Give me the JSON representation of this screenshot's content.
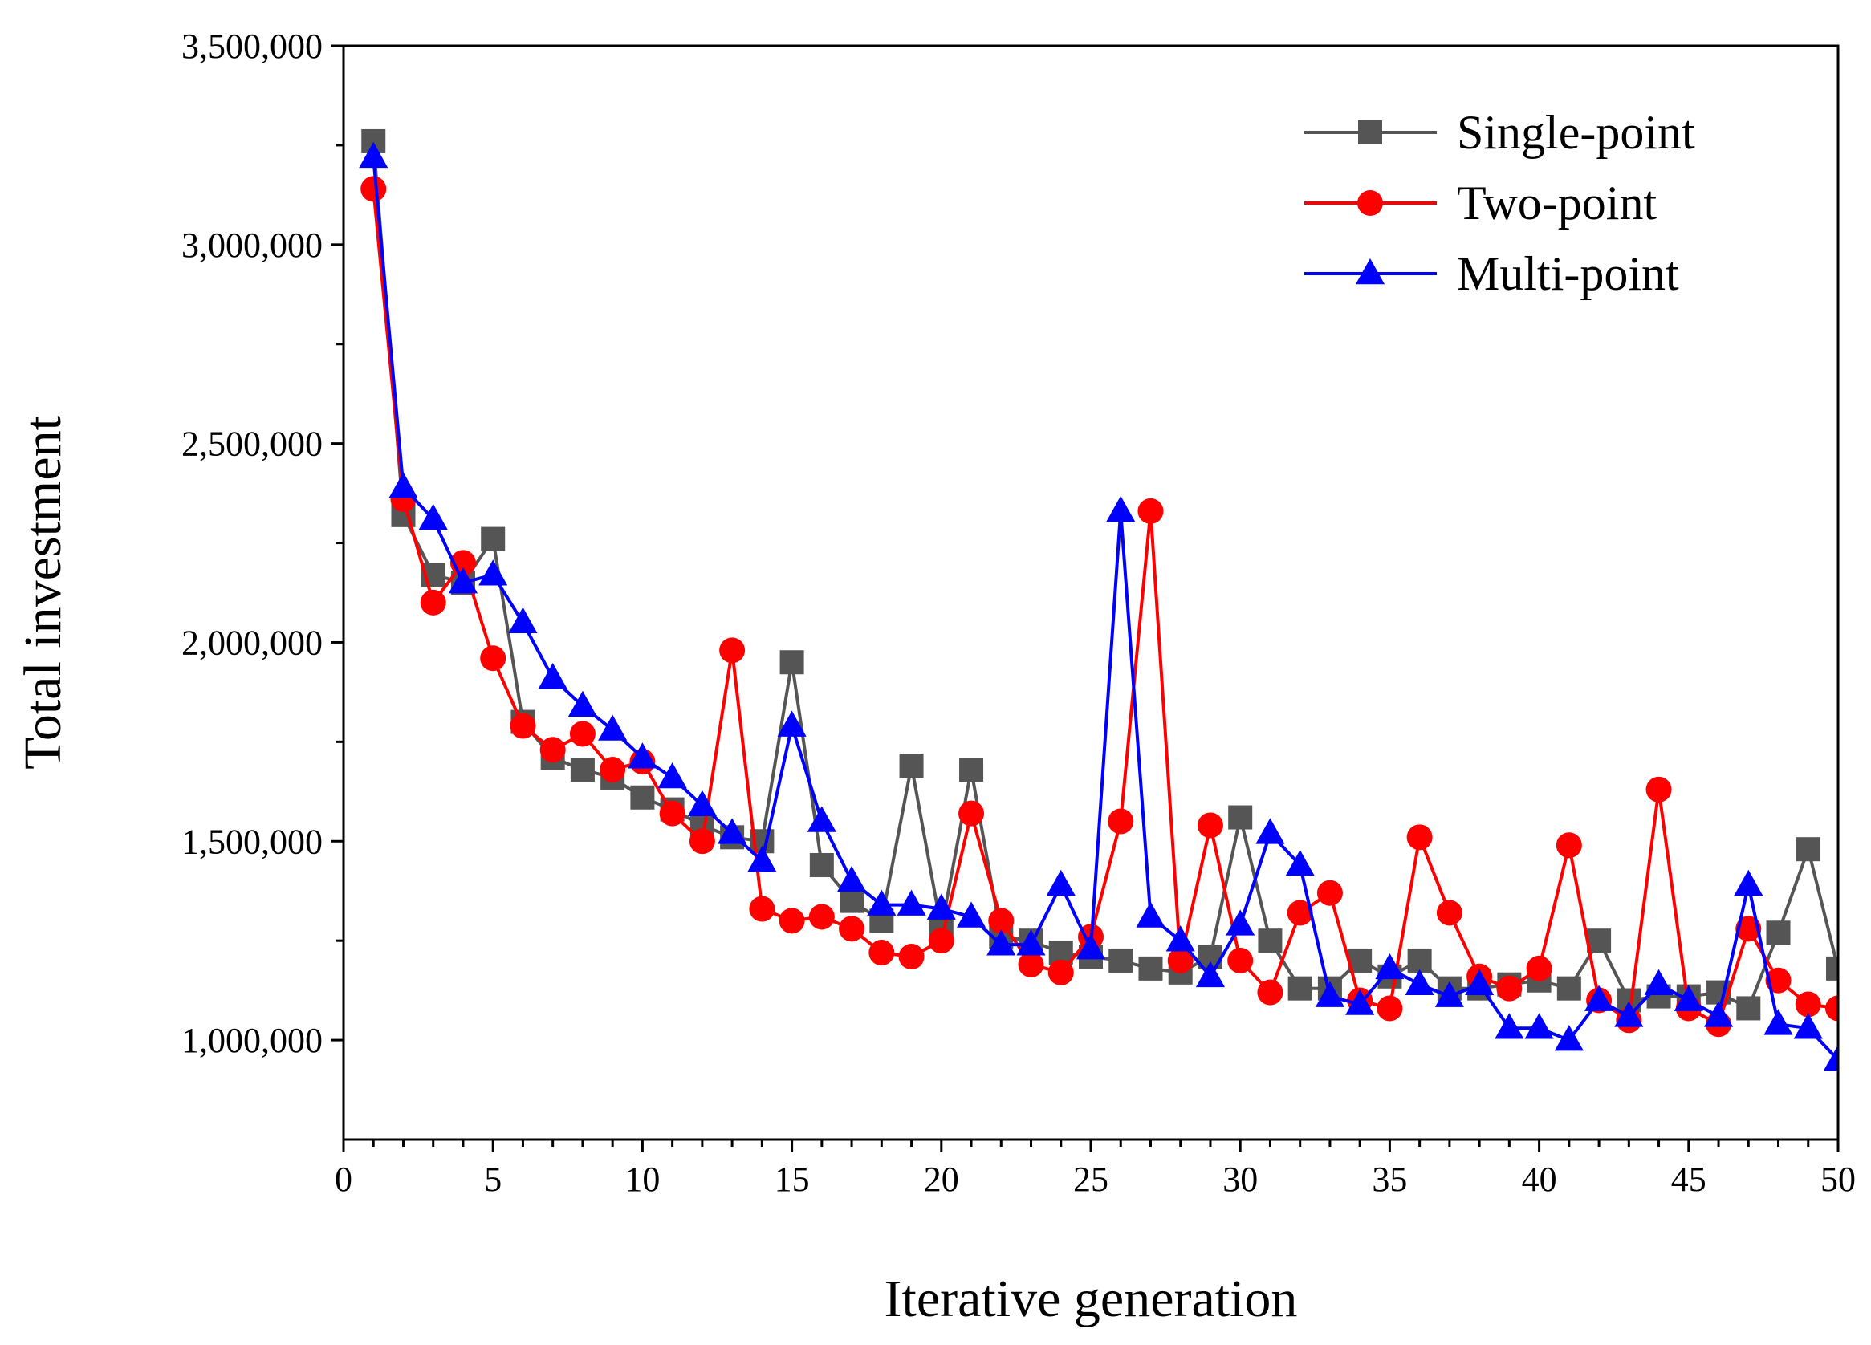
{
  "chart_data": {
    "type": "line",
    "title": "",
    "xlabel": "Iterative generation",
    "ylabel": "Total investment",
    "xlim": [
      0,
      50
    ],
    "ylim": [
      750000,
      3500000
    ],
    "grid": false,
    "legend_position": "top-right",
    "x_ticks": [
      0,
      5,
      10,
      15,
      20,
      25,
      30,
      35,
      40,
      45,
      50
    ],
    "x_tick_labels": [
      "0",
      "5",
      "10",
      "15",
      "20",
      "25",
      "30",
      "35",
      "40",
      "45",
      "50"
    ],
    "y_ticks": [
      1000000,
      1500000,
      2000000,
      2500000,
      3000000,
      3500000
    ],
    "y_tick_labels": [
      "1,000,000",
      "1,500,000",
      "2,000,000",
      "2,500,000",
      "3,000,000",
      "3,500,000"
    ],
    "x": [
      1,
      2,
      3,
      4,
      5,
      6,
      7,
      8,
      9,
      10,
      11,
      12,
      13,
      14,
      15,
      16,
      17,
      18,
      19,
      20,
      21,
      22,
      23,
      24,
      25,
      26,
      27,
      28,
      29,
      30,
      31,
      32,
      33,
      34,
      35,
      36,
      37,
      38,
      39,
      40,
      41,
      42,
      43,
      44,
      45,
      46,
      47,
      48,
      49,
      50
    ],
    "series": [
      {
        "name": "Single-point",
        "color": "#555555",
        "marker": "square",
        "values": [
          3260000,
          2320000,
          2170000,
          2150000,
          2260000,
          1800000,
          1710000,
          1680000,
          1660000,
          1610000,
          1580000,
          1540000,
          1510000,
          1500000,
          1950000,
          1440000,
          1350000,
          1300000,
          1690000,
          1280000,
          1680000,
          1260000,
          1250000,
          1220000,
          1210000,
          1200000,
          1180000,
          1170000,
          1210000,
          1560000,
          1250000,
          1130000,
          1130000,
          1200000,
          1160000,
          1200000,
          1130000,
          1130000,
          1140000,
          1150000,
          1130000,
          1250000,
          1100000,
          1110000,
          1110000,
          1120000,
          1080000,
          1270000,
          1480000,
          1180000
        ]
      },
      {
        "name": "Two-point",
        "color": "#ff0000",
        "marker": "circle",
        "values": [
          3140000,
          2360000,
          2100000,
          2200000,
          1960000,
          1790000,
          1730000,
          1770000,
          1680000,
          1700000,
          1570000,
          1500000,
          1980000,
          1330000,
          1300000,
          1310000,
          1280000,
          1220000,
          1210000,
          1250000,
          1570000,
          1300000,
          1190000,
          1170000,
          1260000,
          1550000,
          2330000,
          1200000,
          1540000,
          1200000,
          1120000,
          1320000,
          1370000,
          1100000,
          1080000,
          1510000,
          1320000,
          1160000,
          1130000,
          1180000,
          1490000,
          1100000,
          1050000,
          1630000,
          1080000,
          1040000,
          1280000,
          1150000,
          1090000,
          1080000
        ]
      },
      {
        "name": "Multi-point",
        "color": "#0000ff",
        "marker": "triangle",
        "values": [
          3220000,
          2390000,
          2310000,
          2150000,
          2170000,
          2050000,
          1910000,
          1840000,
          1780000,
          1710000,
          1660000,
          1590000,
          1520000,
          1450000,
          1790000,
          1550000,
          1400000,
          1340000,
          1340000,
          1330000,
          1310000,
          1240000,
          1240000,
          1390000,
          1230000,
          2330000,
          1310000,
          1250000,
          1160000,
          1290000,
          1520000,
          1440000,
          1110000,
          1090000,
          1180000,
          1140000,
          1110000,
          1140000,
          1030000,
          1030000,
          1000000,
          1100000,
          1060000,
          1140000,
          1100000,
          1060000,
          1390000,
          1040000,
          1030000,
          950000
        ]
      }
    ]
  }
}
